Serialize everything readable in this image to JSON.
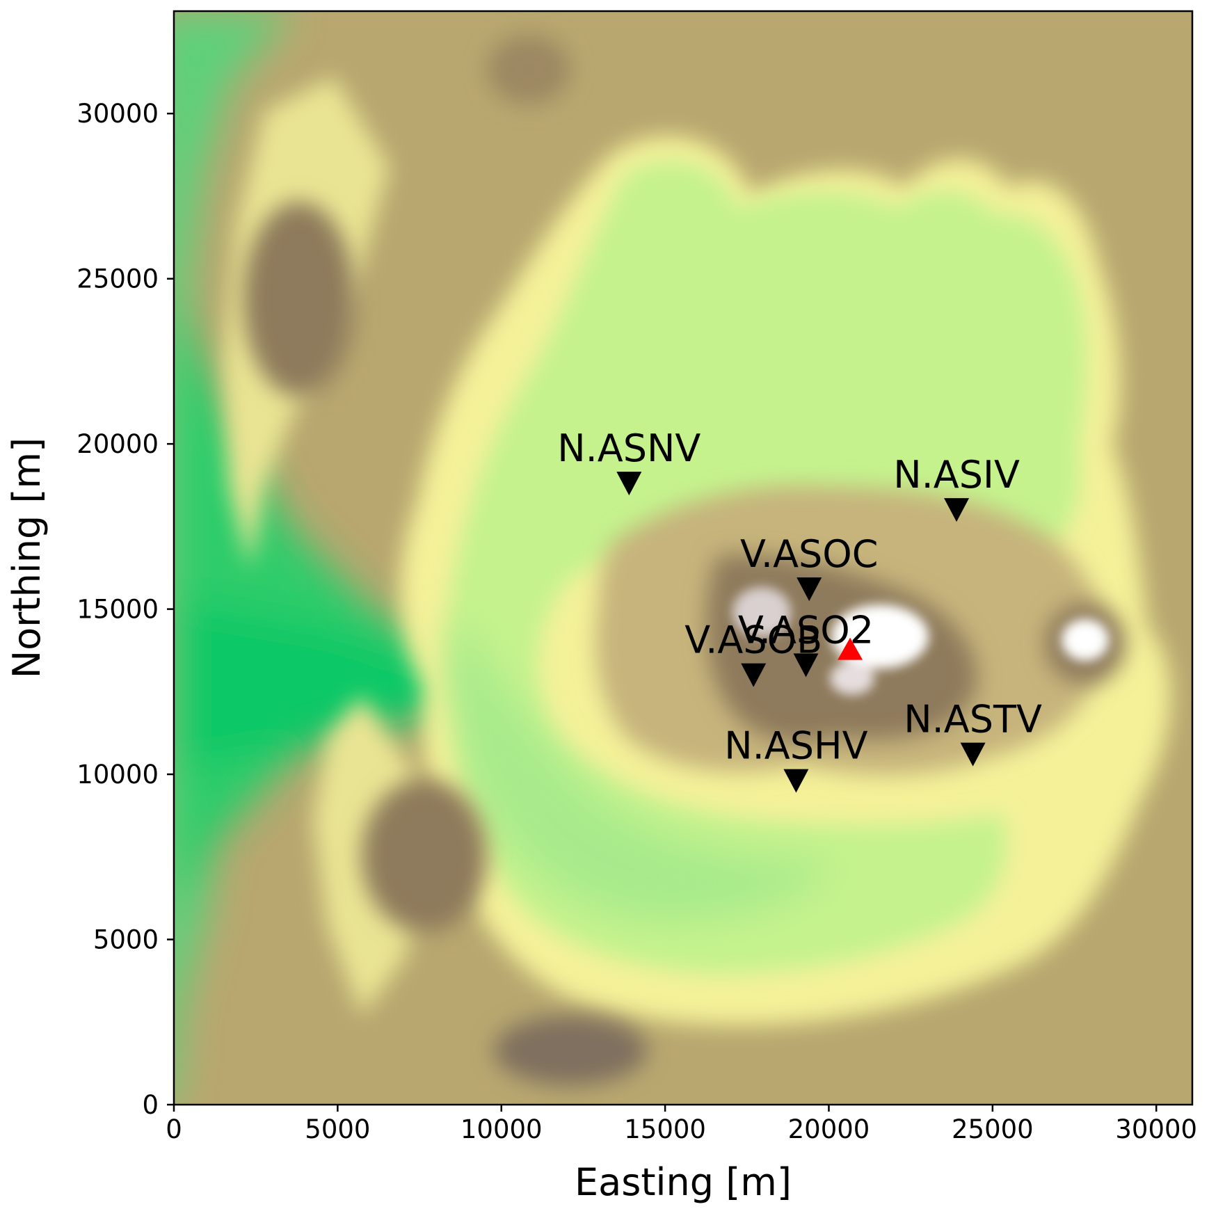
{
  "chart_data": {
    "type": "map",
    "xlabel": "Easting [m]",
    "ylabel": "Northing [m]",
    "xlim": [
      0,
      31100
    ],
    "ylim": [
      0,
      33100
    ],
    "x_ticks": [
      0,
      5000,
      10000,
      15000,
      20000,
      25000,
      30000
    ],
    "y_ticks": [
      0,
      5000,
      10000,
      15000,
      20000,
      25000,
      30000
    ],
    "colormap": "terrain",
    "stations": [
      {
        "name": "N.ASNV",
        "x": 13900,
        "y": 18800
      },
      {
        "name": "N.ASIV",
        "x": 23900,
        "y": 18000
      },
      {
        "name": "V.ASOC",
        "x": 19400,
        "y": 15600
      },
      {
        "name": "V.ASOB",
        "x": 17700,
        "y": 13000
      },
      {
        "name": "V.ASO2",
        "x": 19300,
        "y": 13300
      },
      {
        "name": "N.ASHV",
        "x": 19000,
        "y": 9800
      },
      {
        "name": "N.ASTV",
        "x": 24400,
        "y": 10600
      }
    ],
    "crater": {
      "x": 20650,
      "y": 13800
    },
    "colors": {
      "station_marker": "#000000",
      "crater_marker": "#ff0000"
    }
  }
}
